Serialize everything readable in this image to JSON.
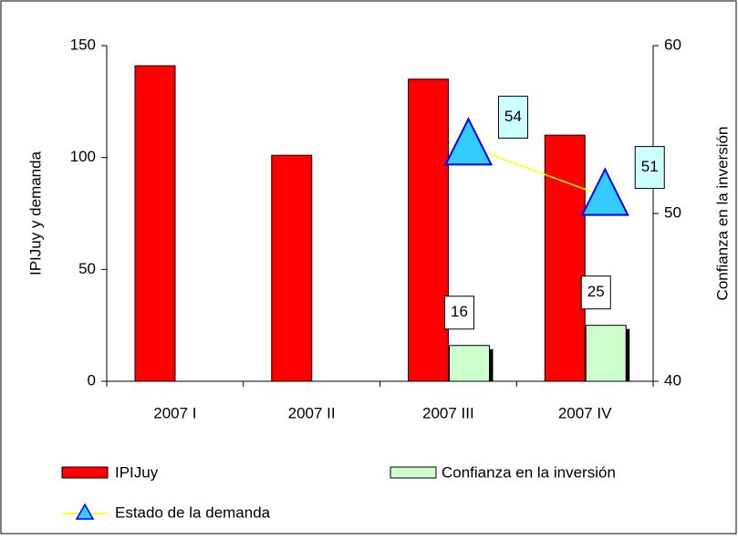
{
  "chart_data": {
    "type": "bar",
    "categories": [
      "2007 I",
      "2007 II",
      "2007 III",
      "2007 IV"
    ],
    "ylabel": "IPIJuy y demanda",
    "y2label": "Confianza en la inversión",
    "ylim": [
      0,
      150
    ],
    "yticks": [
      0,
      50,
      100,
      150
    ],
    "y2lim": [
      40,
      60
    ],
    "y2ticks": [
      40,
      50,
      60
    ],
    "series": [
      {
        "name": "IPIJuy",
        "color": "#ff0000",
        "values": [
          141,
          101,
          135,
          110
        ]
      },
      {
        "name": "Confianza en la inversión",
        "color": "#ccffcc",
        "values": [
          null,
          null,
          16,
          25
        ]
      },
      {
        "name": "Estado de la demanda",
        "color": "#33ccff",
        "line_color": "#ffff00",
        "axis": "y2",
        "values": [
          null,
          null,
          54,
          51
        ]
      }
    ]
  }
}
